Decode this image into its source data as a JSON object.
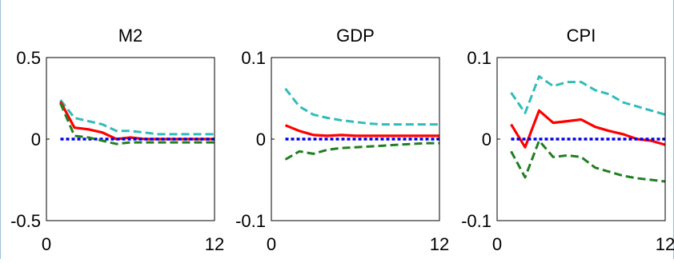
{
  "chart_data": [
    {
      "type": "line",
      "title": "M2",
      "x": [
        1,
        2,
        3,
        4,
        5,
        6,
        7,
        8,
        9,
        10,
        11,
        12
      ],
      "xlim": [
        0,
        12
      ],
      "xticks": [
        "0",
        "12"
      ],
      "ylim": [
        -0.5,
        0.5
      ],
      "yticks": [
        "0.5",
        "0",
        "-0.5"
      ],
      "grid": false,
      "series": [
        {
          "color": "#33bbbb",
          "dash": "upper",
          "values": [
            0.24,
            0.13,
            0.11,
            0.09,
            0.05,
            0.05,
            0.04,
            0.03,
            0.03,
            0.03,
            0.03,
            0.03
          ]
        },
        {
          "color": "#ff0000",
          "dash": "solid",
          "values": [
            0.23,
            0.07,
            0.06,
            0.04,
            0.0,
            0.01,
            0.0,
            0.0,
            0.0,
            0.0,
            0.0,
            0.0
          ]
        },
        {
          "color": "#0000ee",
          "dash": "dotted",
          "values": [
            0,
            0,
            0,
            0,
            0,
            0,
            0,
            0,
            0,
            0,
            0,
            0
          ]
        },
        {
          "color": "#207f20",
          "dash": "lower",
          "values": [
            0.22,
            0.02,
            0.01,
            -0.01,
            -0.03,
            -0.02,
            -0.02,
            -0.02,
            -0.02,
            -0.02,
            -0.02,
            -0.02
          ]
        }
      ]
    },
    {
      "type": "line",
      "title": "GDP",
      "x": [
        1,
        2,
        3,
        4,
        5,
        6,
        7,
        8,
        9,
        10,
        11,
        12
      ],
      "xlim": [
        0,
        12
      ],
      "xticks": [
        "0",
        "12"
      ],
      "ylim": [
        -0.1,
        0.1
      ],
      "yticks": [
        "0.1",
        "0",
        "-0.1"
      ],
      "grid": false,
      "series": [
        {
          "color": "#33bbbb",
          "dash": "upper",
          "values": [
            0.062,
            0.04,
            0.03,
            0.026,
            0.023,
            0.021,
            0.019,
            0.018,
            0.018,
            0.018,
            0.018,
            0.018
          ]
        },
        {
          "color": "#ff0000",
          "dash": "solid",
          "values": [
            0.017,
            0.01,
            0.005,
            0.004,
            0.005,
            0.004,
            0.004,
            0.004,
            0.004,
            0.004,
            0.004,
            0.004
          ]
        },
        {
          "color": "#0000ee",
          "dash": "dotted",
          "values": [
            0,
            0,
            0,
            0,
            0,
            0,
            0,
            0,
            0,
            0,
            0,
            0
          ]
        },
        {
          "color": "#207f20",
          "dash": "lower",
          "values": [
            -0.025,
            -0.015,
            -0.018,
            -0.013,
            -0.011,
            -0.01,
            -0.009,
            -0.008,
            -0.007,
            -0.006,
            -0.005,
            -0.005
          ]
        }
      ]
    },
    {
      "type": "line",
      "title": "CPI",
      "x": [
        1,
        2,
        3,
        4,
        5,
        6,
        7,
        8,
        9,
        10,
        11,
        12
      ],
      "xlim": [
        0,
        12
      ],
      "xticks": [
        "0",
        "12"
      ],
      "ylim": [
        -0.1,
        0.1
      ],
      "yticks": [
        "0.1",
        "0",
        "-0.1"
      ],
      "grid": false,
      "series": [
        {
          "color": "#33bbbb",
          "dash": "upper",
          "values": [
            0.057,
            0.032,
            0.077,
            0.065,
            0.07,
            0.07,
            0.06,
            0.055,
            0.045,
            0.04,
            0.035,
            0.03
          ]
        },
        {
          "color": "#ff0000",
          "dash": "solid",
          "values": [
            0.018,
            -0.01,
            0.035,
            0.02,
            0.022,
            0.024,
            0.015,
            0.01,
            0.006,
            0.0,
            -0.002,
            -0.007
          ]
        },
        {
          "color": "#0000ee",
          "dash": "dotted",
          "values": [
            0,
            0,
            0,
            0,
            0,
            0,
            0,
            0,
            0,
            0,
            0,
            0
          ]
        },
        {
          "color": "#207f20",
          "dash": "lower",
          "values": [
            -0.015,
            -0.047,
            -0.002,
            -0.022,
            -0.02,
            -0.022,
            -0.035,
            -0.04,
            -0.045,
            -0.048,
            -0.05,
            -0.052
          ]
        }
      ]
    }
  ]
}
